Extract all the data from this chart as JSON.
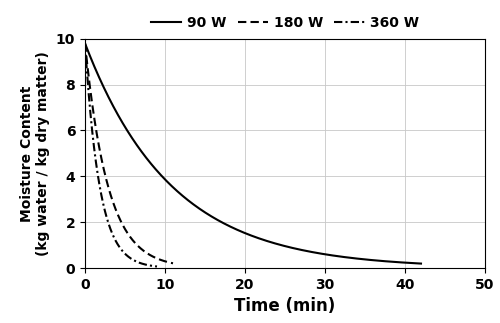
{
  "title": "",
  "xlabel": "Time (min)",
  "ylabel": "Moisture Content\n(kg water / kg dry matter)",
  "xlim": [
    0,
    50
  ],
  "ylim": [
    0,
    10
  ],
  "xticks": [
    0,
    10,
    20,
    30,
    40,
    50
  ],
  "yticks": [
    0,
    2,
    4,
    6,
    8,
    10
  ],
  "legend_labels": [
    "90 W",
    "180 W",
    "360 W"
  ],
  "curve_90W": {
    "k": 0.093,
    "t_max": 42,
    "y0": 9.8
  },
  "curve_180W": {
    "k": 0.35,
    "t_max": 11,
    "y0": 9.8
  },
  "curve_360W": {
    "k": 0.55,
    "t_max": 9,
    "y0": 9.8
  },
  "line_color": "#000000",
  "background_color": "#ffffff",
  "grid_color": "#c8c8c8",
  "xlabel_fontsize": 12,
  "ylabel_fontsize": 10,
  "legend_fontsize": 10,
  "tick_fontsize": 10,
  "linewidth": 1.5
}
